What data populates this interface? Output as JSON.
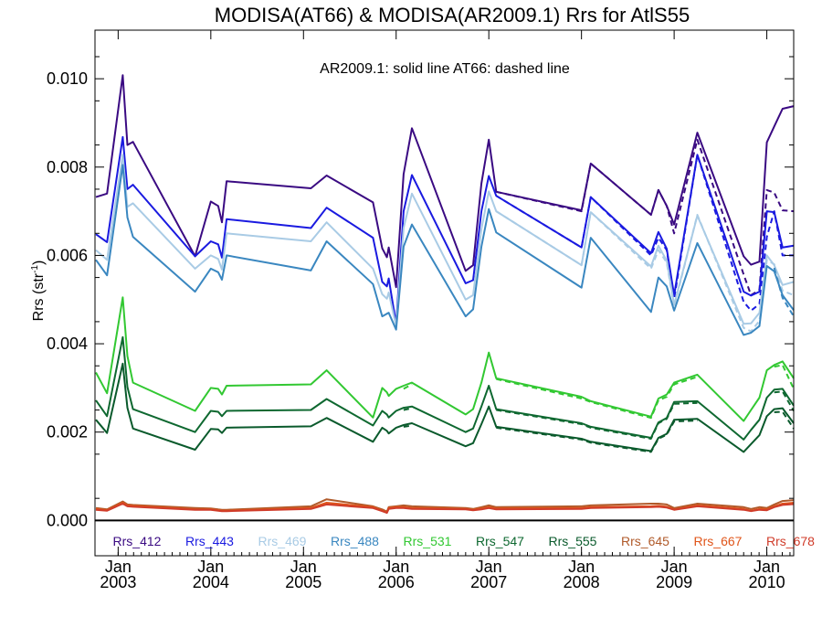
{
  "chart_data": {
    "type": "line",
    "title": "MODISA(AT66) & MODISA(AR2009.1)  Rrs for AtlS55",
    "annotation": "AR2009.1: solid line   AT66: dashed line",
    "ylabel_main": "Rrs (str",
    "ylabel_sup": "-1",
    "ylabel_close": ")",
    "xlabel": "",
    "xlim": [
      2002.75,
      2010.29
    ],
    "ylim": [
      -0.0008,
      0.0111
    ],
    "yticks": [
      {
        "value": 0.0,
        "label": "0.000"
      },
      {
        "value": 0.002,
        "label": "0.002"
      },
      {
        "value": 0.004,
        "label": "0.004"
      },
      {
        "value": 0.006,
        "label": "0.006"
      },
      {
        "value": 0.008,
        "label": "0.008"
      },
      {
        "value": 0.01,
        "label": "0.010"
      }
    ],
    "xticks": [
      {
        "value": 2003,
        "label1": "Jan",
        "label2": "2003"
      },
      {
        "value": 2004,
        "label1": "Jan",
        "label2": "2004"
      },
      {
        "value": 2005,
        "label1": "Jan",
        "label2": "2005"
      },
      {
        "value": 2006,
        "label1": "Jan",
        "label2": "2006"
      },
      {
        "value": 2007,
        "label1": "Jan",
        "label2": "2007"
      },
      {
        "value": 2008,
        "label1": "Jan",
        "label2": "2008"
      },
      {
        "value": 2009,
        "label1": "Jan",
        "label2": "2009"
      },
      {
        "value": 2010,
        "label1": "Jan",
        "label2": "2010"
      }
    ],
    "x": [
      2002.76,
      2002.88,
      2003.05,
      2003.1,
      2003.16,
      2003.83,
      2004.0,
      2004.08,
      2004.12,
      2004.17,
      2005.08,
      2005.25,
      2005.75,
      2005.85,
      2005.9,
      2005.92,
      2006.0,
      2006.08,
      2006.17,
      2006.75,
      2006.83,
      2006.92,
      2007.0,
      2007.08,
      2008.0,
      2008.1,
      2008.75,
      2008.83,
      2008.92,
      2009.0,
      2009.25,
      2009.75,
      2009.83,
      2009.92,
      2010.0,
      2010.08,
      2010.17,
      2010.29
    ],
    "series": [
      {
        "name": "Rrs_412",
        "color": "#3a0a82",
        "solid": [
          0.00732,
          0.0074,
          0.01008,
          0.0085,
          0.00857,
          0.00598,
          0.00722,
          0.00712,
          0.00675,
          0.00768,
          0.00752,
          0.00781,
          0.0072,
          0.00616,
          0.00596,
          0.00618,
          0.00528,
          0.00784,
          0.00888,
          0.00565,
          0.00578,
          0.00763,
          0.00862,
          0.00744,
          0.00702,
          0.00808,
          0.00692,
          0.00748,
          0.00712,
          0.0067,
          0.00878,
          0.00598,
          0.00579,
          0.00586,
          0.00856,
          0.00892,
          0.00932,
          0.00938
        ],
        "dashed": [
          null,
          null,
          null,
          null,
          null,
          null,
          null,
          null,
          null,
          null,
          null,
          null,
          null,
          null,
          null,
          null,
          null,
          null,
          null,
          null,
          null,
          null,
          null,
          0.00744,
          0.007,
          0.00808,
          0.00692,
          0.00748,
          0.00712,
          0.0065,
          0.00862,
          0.00557,
          0.0051,
          0.00522,
          0.00748,
          0.00742,
          0.00702,
          0.007
        ]
      },
      {
        "name": "Rrs_443",
        "color": "#1a1ae0",
        "solid": [
          0.00648,
          0.0063,
          0.00868,
          0.0075,
          0.0076,
          0.00598,
          0.00632,
          0.00625,
          0.00595,
          0.00682,
          0.00662,
          0.00708,
          0.0064,
          0.0054,
          0.0053,
          0.00548,
          0.00445,
          0.007,
          0.00782,
          0.00537,
          0.00544,
          0.007,
          0.0078,
          0.00735,
          0.00618,
          0.00732,
          0.00605,
          0.00653,
          0.00615,
          0.0051,
          0.00828,
          0.00518,
          0.00509,
          0.00518,
          0.007,
          0.00698,
          0.00618,
          0.00622
        ],
        "dashed": [
          null,
          null,
          null,
          null,
          null,
          null,
          null,
          null,
          null,
          null,
          null,
          null,
          null,
          null,
          null,
          null,
          null,
          null,
          null,
          null,
          null,
          null,
          null,
          0.00735,
          0.00618,
          0.00732,
          0.006,
          0.0064,
          0.00612,
          0.00502,
          0.00828,
          0.00495,
          0.00475,
          0.0049,
          0.00642,
          0.007,
          0.006,
          0.006
        ]
      },
      {
        "name": "Rrs_469",
        "color": "#a9cbe5",
        "solid": [
          0.00612,
          0.0059,
          0.00828,
          0.0071,
          0.00718,
          0.0057,
          0.006,
          0.00592,
          0.00568,
          0.0065,
          0.00632,
          0.00675,
          0.0057,
          0.00512,
          0.00502,
          0.00516,
          0.0044,
          0.00662,
          0.0074,
          0.005,
          0.0051,
          0.0066,
          0.00745,
          0.007,
          0.00578,
          0.00698,
          0.00575,
          0.00622,
          0.00588,
          0.00488,
          0.0069,
          0.00445,
          0.00446,
          0.0047,
          0.006,
          0.00578,
          0.00533,
          0.0054
        ],
        "dashed": [
          null,
          null,
          null,
          null,
          null,
          null,
          null,
          null,
          null,
          null,
          null,
          null,
          null,
          null,
          null,
          null,
          null,
          null,
          null,
          null,
          null,
          null,
          null,
          0.007,
          0.00578,
          0.00698,
          0.0057,
          0.00612,
          0.00584,
          0.00484,
          0.00692,
          0.00436,
          0.00428,
          0.00452,
          0.0059,
          0.0058,
          0.0052,
          0.0051
        ]
      },
      {
        "name": "Rrs_488",
        "color": "#3a87c0",
        "solid": [
          0.0059,
          0.00555,
          0.00805,
          0.00686,
          0.00642,
          0.00518,
          0.0057,
          0.00562,
          0.00545,
          0.006,
          0.00566,
          0.00632,
          0.00535,
          0.00462,
          0.00468,
          0.0047,
          0.00432,
          0.0062,
          0.0067,
          0.00462,
          0.00478,
          0.0062,
          0.00705,
          0.00652,
          0.00527,
          0.0064,
          0.00472,
          0.0055,
          0.0053,
          0.00475,
          0.00628,
          0.0042,
          0.00425,
          0.0044,
          0.00576,
          0.00564,
          0.0051,
          0.00476
        ],
        "dashed": [
          null,
          null,
          null,
          null,
          null,
          null,
          null,
          null,
          null,
          null,
          null,
          null,
          null,
          null,
          null,
          null,
          null,
          null,
          null,
          null,
          null,
          null,
          null,
          null,
          null,
          null,
          null,
          null,
          null,
          null,
          null,
          null,
          null,
          null,
          null,
          0.00572,
          0.00504,
          0.00462
        ]
      },
      {
        "name": "Rrs_531",
        "color": "#32c832",
        "solid": [
          0.00335,
          0.00288,
          0.00505,
          0.00372,
          0.00312,
          0.00248,
          0.003,
          0.00298,
          0.00285,
          0.00305,
          0.00308,
          0.0034,
          0.00233,
          0.003,
          0.0029,
          0.00282,
          0.00298,
          0.00305,
          0.00312,
          0.0024,
          0.00252,
          0.00312,
          0.0038,
          0.00322,
          0.0028,
          0.0027,
          0.00235,
          0.00276,
          0.00285,
          0.00312,
          0.0033,
          0.00225,
          0.0025,
          0.00278,
          0.0034,
          0.00352,
          0.0036,
          0.00322
        ],
        "dashed": [
          null,
          null,
          null,
          null,
          0.0032,
          null,
          null,
          null,
          null,
          null,
          null,
          null,
          null,
          null,
          null,
          null,
          null,
          0.00298,
          0.00308,
          null,
          null,
          null,
          null,
          0.0032,
          0.00276,
          0.00268,
          0.00232,
          0.00272,
          0.0028,
          0.00308,
          0.00325,
          null,
          null,
          null,
          null,
          0.00348,
          0.00352,
          0.00298
        ]
      },
      {
        "name": "Rrs_547",
        "color": "#0e6830",
        "solid": [
          0.00272,
          0.00236,
          0.00415,
          0.00302,
          0.00252,
          0.002,
          0.00248,
          0.00246,
          0.00236,
          0.00248,
          0.0025,
          0.00275,
          0.00215,
          0.00248,
          0.0024,
          0.00233,
          0.00248,
          0.00255,
          0.00258,
          0.002,
          0.00208,
          0.00258,
          0.00305,
          0.00252,
          0.0022,
          0.00212,
          0.00187,
          0.00222,
          0.00232,
          0.00268,
          0.0027,
          0.00183,
          0.00205,
          0.00228,
          0.00278,
          0.00296,
          0.00298,
          0.0026
        ],
        "dashed": [
          null,
          null,
          null,
          null,
          0.0026,
          null,
          null,
          null,
          null,
          null,
          null,
          null,
          null,
          null,
          null,
          null,
          null,
          0.0025,
          0.00254,
          null,
          null,
          null,
          null,
          0.0025,
          0.00218,
          0.0021,
          0.00185,
          0.0022,
          0.0023,
          0.00264,
          0.00266,
          null,
          null,
          null,
          null,
          0.0029,
          0.00292,
          0.00248
        ]
      },
      {
        "name": "Rrs_555",
        "color": "#0a5a2c",
        "solid": [
          0.00228,
          0.00198,
          0.00355,
          0.00255,
          0.00208,
          0.0016,
          0.00207,
          0.00206,
          0.00198,
          0.0021,
          0.00213,
          0.00232,
          0.00178,
          0.0021,
          0.00203,
          0.00197,
          0.0021,
          0.00216,
          0.0022,
          0.00168,
          0.00175,
          0.00218,
          0.00258,
          0.00212,
          0.00185,
          0.00178,
          0.00157,
          0.00187,
          0.00196,
          0.00228,
          0.0023,
          0.00155,
          0.00173,
          0.00193,
          0.00236,
          0.00252,
          0.00254,
          0.0022
        ],
        "dashed": [
          null,
          null,
          null,
          null,
          0.00215,
          null,
          null,
          null,
          null,
          null,
          null,
          null,
          null,
          null,
          null,
          null,
          null,
          0.00212,
          0.00215,
          null,
          null,
          null,
          null,
          0.0021,
          0.00183,
          0.00176,
          0.00155,
          0.00185,
          0.00194,
          0.00224,
          0.00226,
          null,
          null,
          null,
          null,
          0.00245,
          0.00246,
          0.00208
        ]
      },
      {
        "name": "Rrs_645",
        "color": "#b05a2a",
        "solid": [
          0.00028,
          0.00025,
          0.00043,
          0.00036,
          0.00035,
          0.00028,
          0.00027,
          0.00025,
          0.00024,
          0.00024,
          0.00032,
          0.00048,
          0.00032,
          0.00025,
          0.0002,
          0.0003,
          0.00032,
          0.00034,
          0.00032,
          0.00028,
          0.00026,
          0.0003,
          0.00034,
          0.0003,
          0.00032,
          0.00034,
          0.00038,
          0.00038,
          0.00036,
          0.00028,
          0.00038,
          0.0003,
          0.00026,
          0.0003,
          0.00028,
          0.00036,
          0.00044,
          0.00046
        ],
        "dashed": [
          null,
          null,
          null,
          null,
          null,
          null,
          null,
          null,
          null,
          null,
          null,
          null,
          null,
          null,
          null,
          null,
          null,
          null,
          null,
          null,
          null,
          null,
          null,
          null,
          null,
          null,
          null,
          null,
          null,
          null,
          null,
          null,
          null,
          null,
          null,
          null,
          null,
          null
        ]
      },
      {
        "name": "Rrs_667",
        "color": "#e0551a",
        "solid": [
          0.00026,
          0.00023,
          0.0004,
          0.00034,
          0.00033,
          0.00025,
          0.00025,
          0.00023,
          0.00022,
          0.00022,
          0.00028,
          0.0004,
          0.0003,
          0.00022,
          0.00018,
          0.00028,
          0.0003,
          0.0003,
          0.00028,
          0.00026,
          0.00024,
          0.00027,
          0.0003,
          0.00027,
          0.00028,
          0.0003,
          0.00032,
          0.00033,
          0.00031,
          0.00025,
          0.00034,
          0.00026,
          0.00022,
          0.00026,
          0.00025,
          0.00032,
          0.00038,
          0.0004
        ],
        "dashed": [
          null,
          null,
          null,
          null,
          null,
          null,
          null,
          null,
          null,
          null,
          null,
          null,
          null,
          null,
          null,
          null,
          null,
          null,
          null,
          null,
          null,
          null,
          null,
          null,
          null,
          null,
          null,
          null,
          null,
          null,
          null,
          null,
          null,
          null,
          null,
          null,
          null,
          null
        ]
      },
      {
        "name": "Rrs_678",
        "color": "#d03c2a",
        "solid": [
          0.00024,
          0.00022,
          0.00038,
          0.00032,
          0.00031,
          0.00024,
          0.00024,
          0.00022,
          0.00021,
          0.00021,
          0.00026,
          0.00036,
          0.00028,
          0.00021,
          0.00017,
          0.00026,
          0.00028,
          0.00028,
          0.00026,
          0.00025,
          0.00023,
          0.00025,
          0.00028,
          0.00025,
          0.00026,
          0.00028,
          0.0003,
          0.00031,
          0.00029,
          0.00024,
          0.00032,
          0.00024,
          0.00021,
          0.00024,
          0.00023,
          0.0003,
          0.00035,
          0.00037
        ],
        "dashed": [
          null,
          null,
          null,
          null,
          null,
          null,
          null,
          null,
          null,
          null,
          null,
          null,
          null,
          null,
          null,
          null,
          null,
          null,
          null,
          null,
          null,
          null,
          null,
          null,
          null,
          null,
          null,
          null,
          null,
          null,
          null,
          null,
          null,
          null,
          null,
          null,
          null,
          null
        ]
      }
    ]
  }
}
